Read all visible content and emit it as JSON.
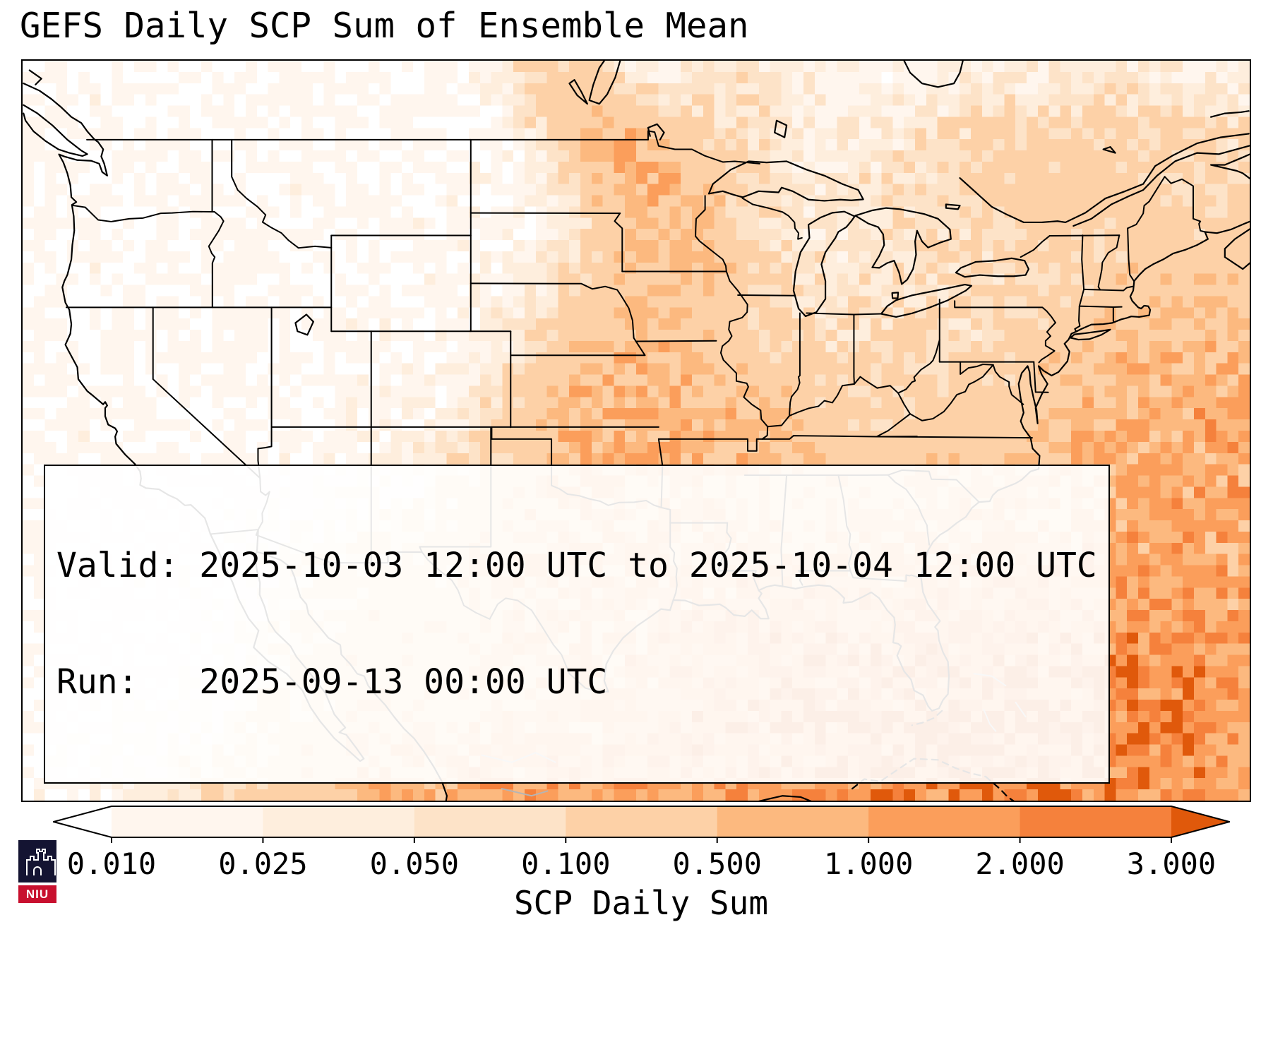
{
  "title": "GEFS Daily SCP Sum of Ensemble Mean",
  "info_box": {
    "valid_line": "Valid: 2025-10-03 12:00 UTC to 2025-10-04 12:00 UTC",
    "run_line": "Run:   2025-09-13 00:00 UTC"
  },
  "colorbar": {
    "label": "SCP Daily Sum",
    "ticks": [
      "0.010",
      "0.025",
      "0.050",
      "0.100",
      "0.500",
      "1.000",
      "2.000",
      "3.000"
    ],
    "boundaries": [
      0.01,
      0.025,
      0.05,
      0.1,
      0.5,
      1,
      2,
      3
    ],
    "segment_colors": [
      "#fff6ee",
      "#feeedd",
      "#fde3c8",
      "#fdd1a7",
      "#fcb97f",
      "#fb9e5b",
      "#f5813c"
    ],
    "under_color": "#ffffff",
    "over_color": "#e0590b",
    "outline_color": "#000000"
  },
  "map": {
    "background_color": "#ffffff",
    "coast_line_color": "#000000",
    "state_line_color": "#000000",
    "minor_line_color": "#b5b5b5"
  },
  "logo": {
    "text": "NIU",
    "shield_color": "#141432",
    "banner_color": "#c8102e"
  }
}
